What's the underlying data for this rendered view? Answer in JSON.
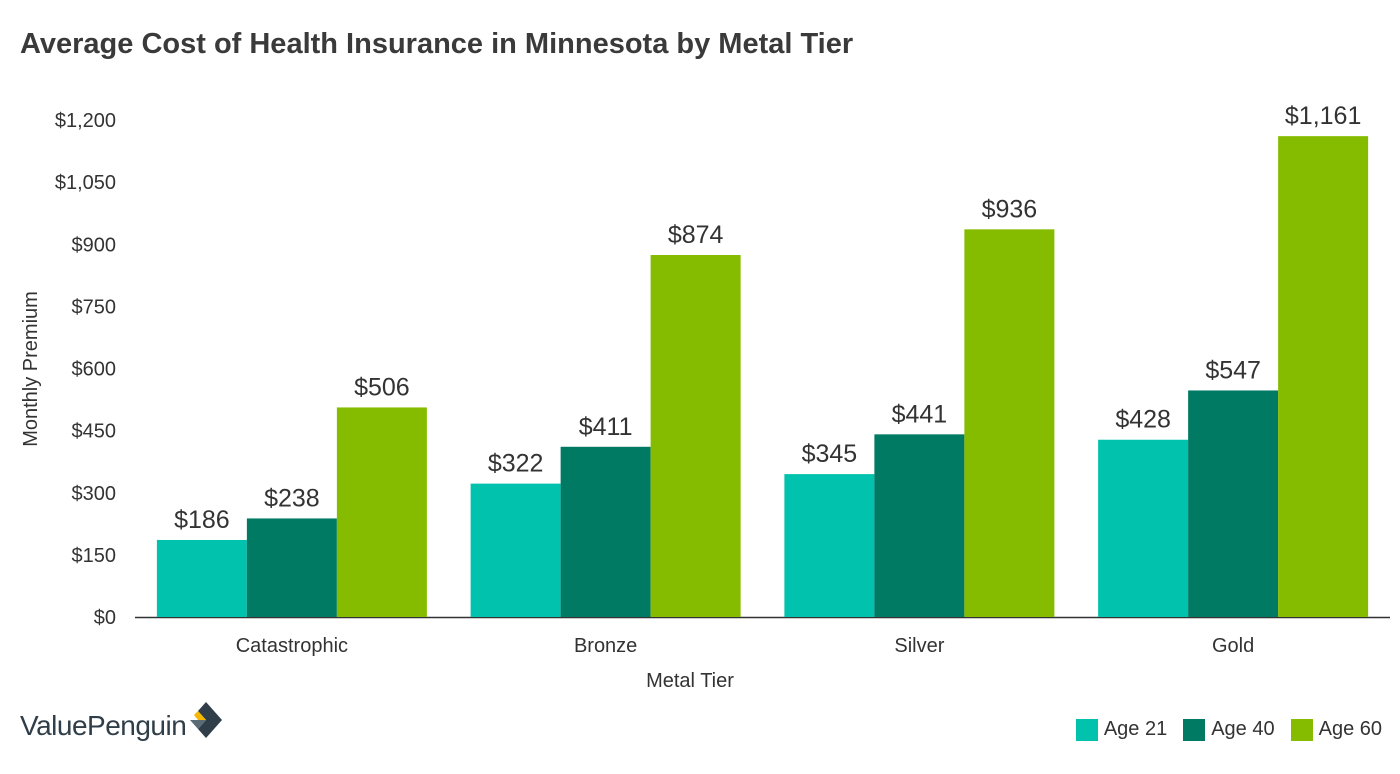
{
  "chart_data": {
    "type": "bar",
    "title": "Average Cost of Health Insurance in Minnesota by Metal Tier",
    "xlabel": "Metal Tier",
    "ylabel": "Monthly Premium",
    "categories": [
      "Catastrophic",
      "Bronze",
      "Silver",
      "Gold"
    ],
    "series": [
      {
        "name": "Age 21",
        "color": "#00c2ad",
        "values": [
          186,
          322,
          345,
          428
        ],
        "labels": [
          "$186",
          "$322",
          "$345",
          "$428"
        ]
      },
      {
        "name": "Age 40",
        "color": "#007a63",
        "values": [
          238,
          411,
          441,
          547
        ],
        "labels": [
          "$238",
          "$411",
          "$441",
          "$547"
        ]
      },
      {
        "name": "Age 60",
        "color": "#85bc00",
        "values": [
          506,
          874,
          936,
          1161
        ],
        "labels": [
          "$506",
          "$874",
          "$936",
          "$1,161"
        ]
      }
    ],
    "yticks": [
      0,
      150,
      300,
      450,
      600,
      750,
      900,
      1050,
      1200
    ],
    "ytick_labels": [
      "$0",
      "$150",
      "$300",
      "$450",
      "$600",
      "$750",
      "$900",
      "$1,050",
      "$1,200"
    ],
    "ylim": [
      0,
      1200
    ],
    "grid": false,
    "legend_position": "bottom-right"
  },
  "brand": {
    "name": "ValuePenguin",
    "logo_icon": "valuepenguin-logo-icon",
    "colors": {
      "dark": "#2f3e48",
      "accent": "#f5b700"
    }
  }
}
